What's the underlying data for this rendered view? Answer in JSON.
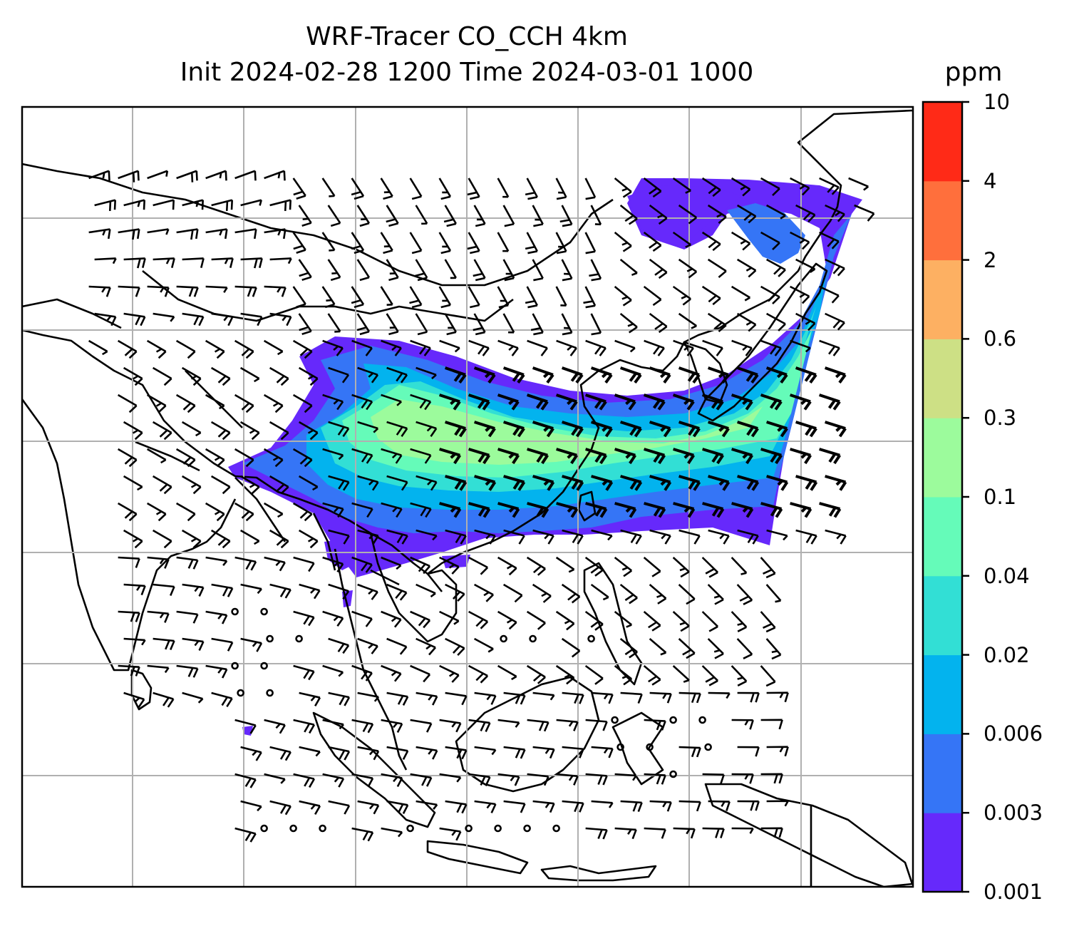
{
  "title": {
    "line1": "WRF-Tracer CO_CCH 4km",
    "line2": "Init 2024-02-28 1200 Time 2024-03-01 1000"
  },
  "colorbar": {
    "unit": "ppm",
    "levels": [
      "0.001",
      "0.003",
      "0.006",
      "0.02",
      "0.04",
      "0.1",
      "0.3",
      "0.6",
      "2",
      "4",
      "10"
    ],
    "colors": [
      "#6629fb",
      "#3575f6",
      "#03b3ee",
      "#32dfd5",
      "#65fbb9",
      "#9cfb9c",
      "#cde085",
      "#fdb062",
      "#ff6f3c",
      "#ff2a17"
    ]
  },
  "map": {
    "field": "CO_CCH",
    "grid": "on",
    "wind_barbs": "on",
    "background": "#ffffff",
    "coastline_color": "#000000"
  }
}
